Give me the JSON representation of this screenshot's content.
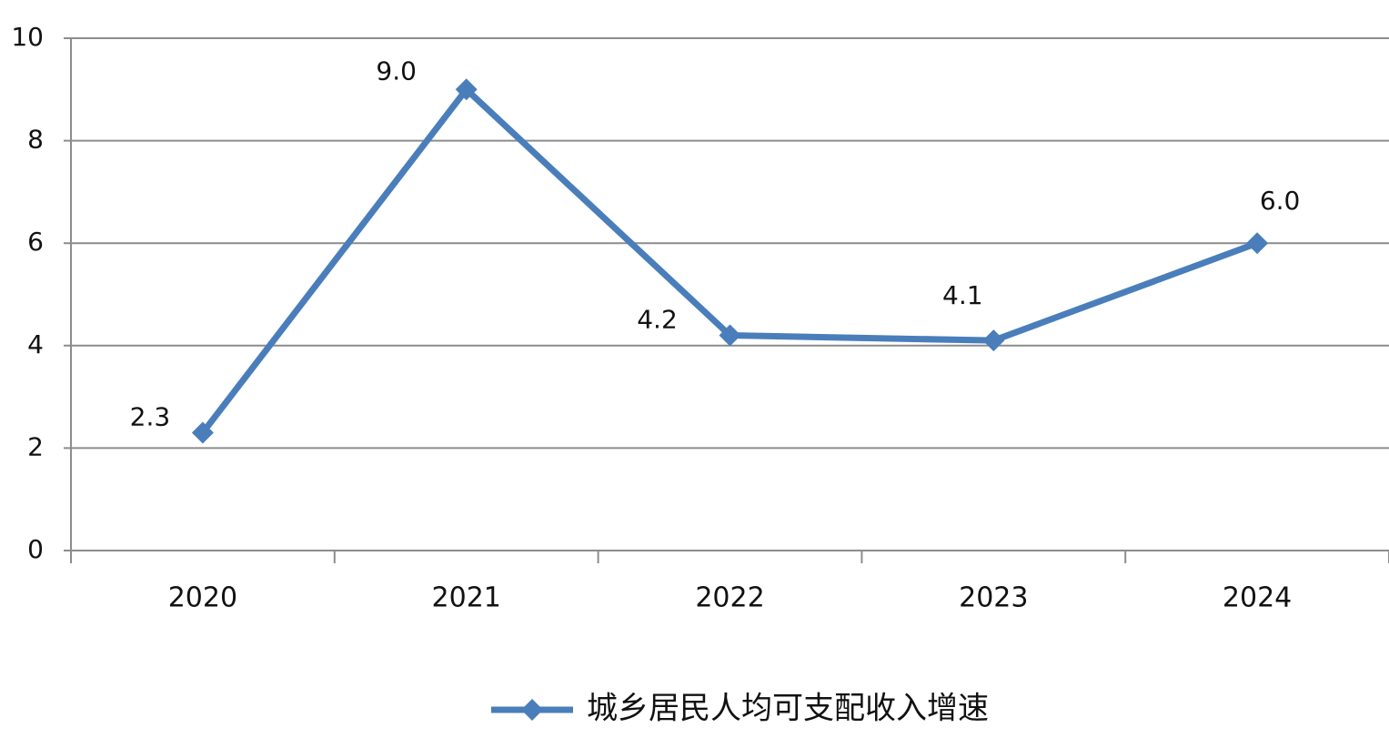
{
  "chart_data": {
    "type": "line",
    "categories": [
      "2020",
      "2021",
      "2022",
      "2023",
      "2024"
    ],
    "series": [
      {
        "name": "城乡居民人均可支配收入增速",
        "color": "#4a7ebb",
        "values": [
          2.3,
          9.0,
          4.2,
          4.1,
          6.0
        ],
        "value_labels": [
          "2.3",
          "9.0",
          "4.2",
          "4.1",
          "6.0"
        ]
      }
    ],
    "ylim": [
      0,
      10
    ],
    "yticks": [
      0,
      2,
      4,
      6,
      8,
      10
    ],
    "grid": true,
    "legend": "bottom"
  }
}
